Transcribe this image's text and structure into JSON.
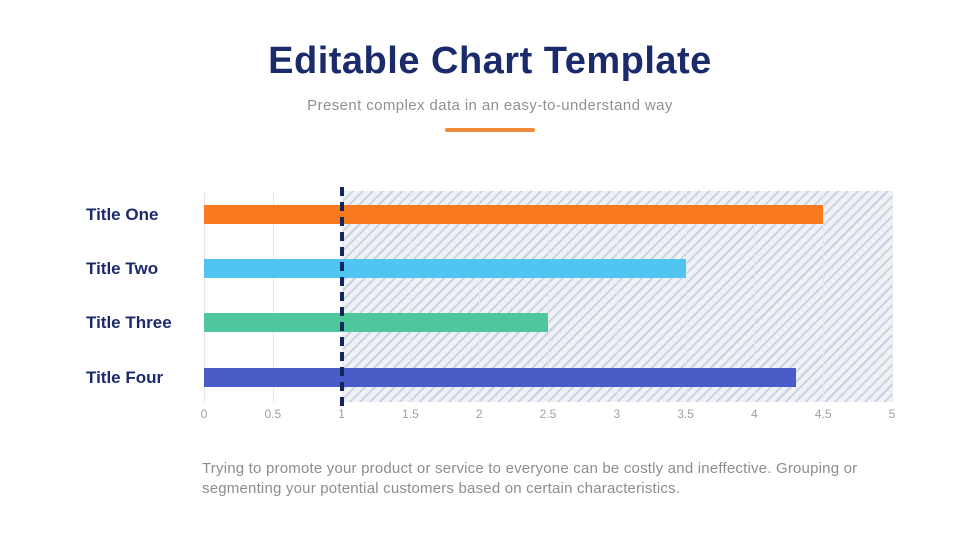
{
  "header": {
    "title": "Editable Chart Template",
    "subtitle": "Present complex data in an easy-to-understand way",
    "underline_color": "#ee8a38"
  },
  "chart_data": {
    "type": "bar",
    "orientation": "horizontal",
    "categories": [
      "Title One",
      "Title Two",
      "Title Three",
      "Title Four"
    ],
    "values": [
      4.5,
      3.5,
      2.5,
      4.3
    ],
    "bar_colors": [
      "#f8791e",
      "#50c5f1",
      "#4ec79c",
      "#4a5cc8"
    ],
    "category_label_color": "#1b2a6b",
    "xlim": [
      0,
      5
    ],
    "x_ticks": [
      "0",
      "0.5",
      "1",
      "1.5",
      "2",
      "2.5",
      "3",
      "3.5",
      "4",
      "4.5",
      "5"
    ],
    "grid": true,
    "reference_line_x": 1,
    "reference_line_color": "#12265c",
    "hatched_region": {
      "from": 1,
      "to": 5
    },
    "legend": "none",
    "title": "",
    "xlabel": "",
    "ylabel": ""
  },
  "footer": {
    "text": "Trying to promote your product or service to everyone can be costly and ineffective. Grouping or segmenting your potential customers based on certain characteristics."
  }
}
